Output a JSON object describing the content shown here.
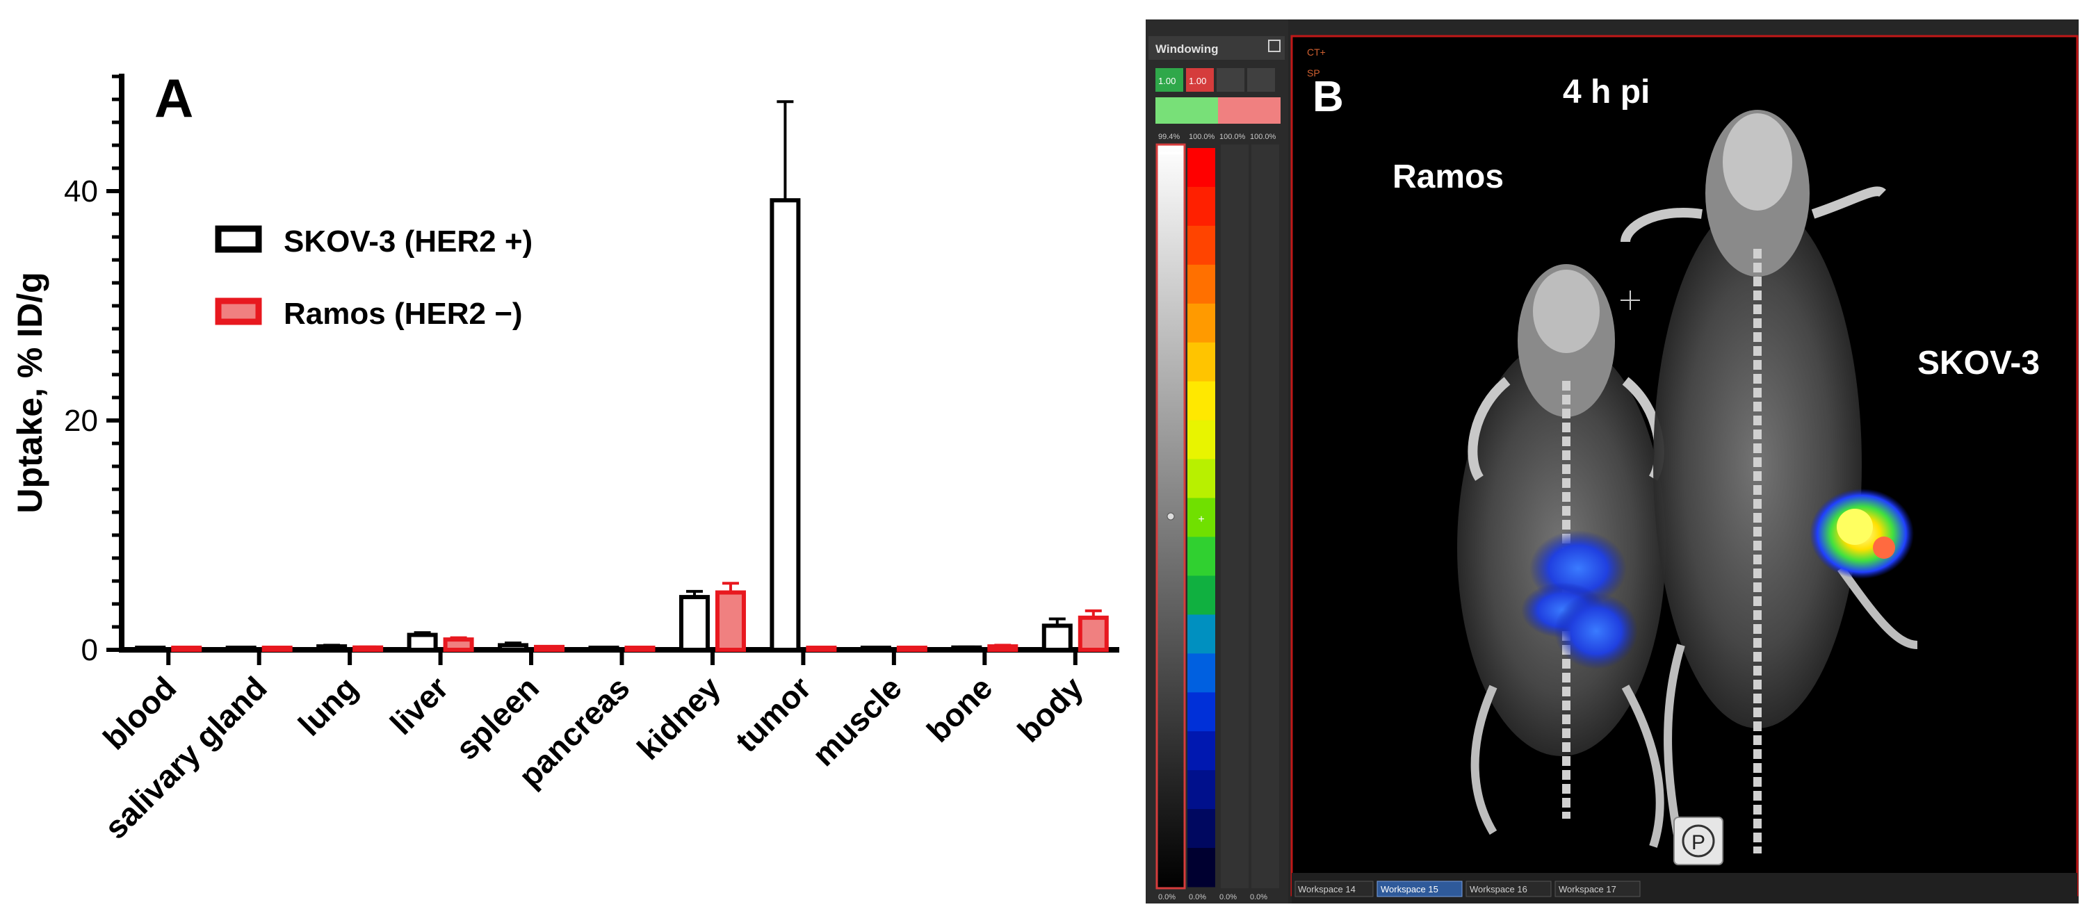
{
  "chart_data": {
    "type": "bar",
    "panel_label": "A",
    "title": "",
    "xlabel": "",
    "ylabel": "Uptake, % ID/g",
    "ylim": [
      0,
      50
    ],
    "yticks": [
      0,
      20,
      40
    ],
    "grid": false,
    "legend_position": "upper-left",
    "categories": [
      "blood",
      "salivary gland",
      "lung",
      "liver",
      "spleen",
      "pancreas",
      "kidney",
      "tumor",
      "muscle",
      "bone",
      "body"
    ],
    "series": [
      {
        "name": "SKOV-3 (HER2 +)",
        "edge_color": "#000000",
        "fill_color": "#ffffff",
        "values": [
          0.15,
          0.1,
          0.3,
          1.3,
          0.4,
          0.05,
          4.6,
          39.2,
          0.05,
          0.2,
          2.1
        ],
        "errors": [
          0.05,
          0.05,
          0.1,
          0.2,
          0.2,
          0.02,
          0.5,
          8.6,
          0.02,
          0.05,
          0.6
        ]
      },
      {
        "name": "Ramos (HER2 −)",
        "edge_color": "#e8181f",
        "fill_color": "#f08080",
        "values": [
          0.15,
          0.15,
          0.2,
          0.9,
          0.25,
          0.15,
          5.0,
          0.05,
          0.05,
          0.3,
          2.8
        ],
        "errors": [
          0.05,
          0.05,
          0.05,
          0.15,
          0.05,
          0.05,
          0.8,
          0.02,
          0.02,
          0.1,
          0.6
        ]
      }
    ]
  },
  "imaging_panel": {
    "panel_label": "B",
    "time_label": "4 h pi",
    "left_mouse_label": "Ramos",
    "right_mouse_label": "SKOV-3",
    "windowing_title": "Windowing",
    "window_value_1": "1.00",
    "window_value_2": "1.00",
    "scale_top_1": "99.4%",
    "scale_top_2": "100.0%",
    "scale_top_3": "100.0%",
    "scale_top_4": "100.0%",
    "scale_bottom_1": "0.0%",
    "scale_bottom_2": "0.0%",
    "scale_bottom_3": "0.0%",
    "scale_bottom_4": "0.0%",
    "overlay_tag_1": "CT+",
    "overlay_tag_2": "SP",
    "p_button": "P",
    "workspace_tabs": [
      "Workspace 14",
      "Workspace 15",
      "Workspace 16",
      "Workspace 17"
    ]
  }
}
